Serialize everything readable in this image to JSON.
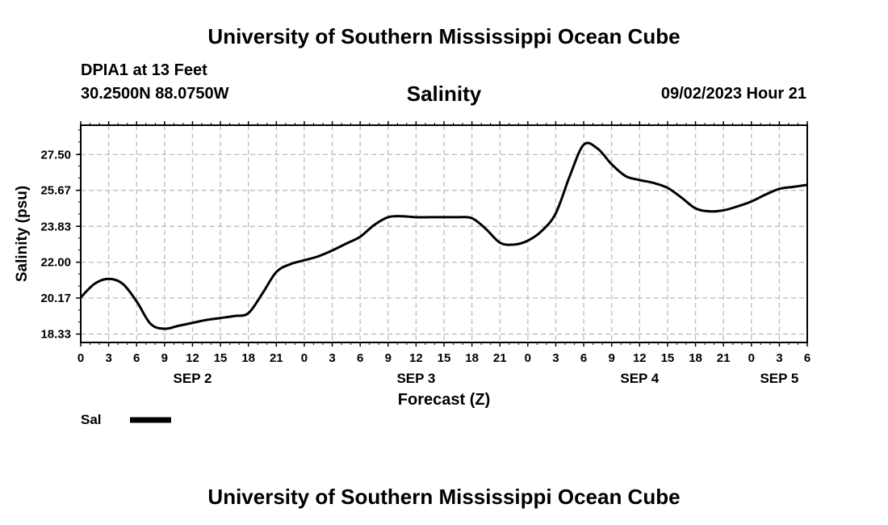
{
  "header": {
    "title": "University of Southern Mississippi Ocean Cube",
    "station": "DPIA1 at 13 Feet",
    "coordinates": "30.2500N  88.0750W",
    "datetime": "09/02/2023 Hour 21"
  },
  "footer": {
    "title": "University of Southern Mississippi Ocean Cube"
  },
  "chart_data": {
    "type": "line",
    "title": "Salinity",
    "xlabel": "Forecast (Z)",
    "ylabel": "Salinity (psu)",
    "xlim": [
      0,
      78
    ],
    "ylim": [
      17.9,
      29.0
    ],
    "grid": true,
    "x_tick_labels": [
      "0",
      "3",
      "6",
      "9",
      "12",
      "15",
      "18",
      "21",
      "0",
      "3",
      "6",
      "9",
      "12",
      "15",
      "18",
      "21",
      "0",
      "3",
      "6",
      "9",
      "12",
      "15",
      "18",
      "21",
      "0",
      "3",
      "6"
    ],
    "y_ticks": [
      18.33,
      20.17,
      22.0,
      23.83,
      25.67,
      27.5
    ],
    "y_tick_labels": [
      "18.33",
      "20.17",
      "22.00",
      "23.83",
      "25.67",
      "27.50"
    ],
    "day_labels": [
      {
        "label": "SEP 2",
        "x": 12
      },
      {
        "label": "SEP 3",
        "x": 36
      },
      {
        "label": "SEP 4",
        "x": 60
      },
      {
        "label": "SEP 5",
        "x": 75
      }
    ],
    "legend": {
      "position": "bottom-left",
      "entries": [
        {
          "name": "Sal",
          "color": "#000000"
        }
      ]
    },
    "series": [
      {
        "name": "Sal",
        "color": "#000000",
        "x": [
          0,
          1.5,
          3,
          4.5,
          6,
          7.5,
          9,
          10.5,
          12,
          13.5,
          15,
          16.5,
          18,
          19.5,
          21,
          22.5,
          24,
          25.5,
          27,
          28.5,
          30,
          31.5,
          33,
          34.5,
          36,
          37.5,
          39,
          40.5,
          42,
          43.5,
          45,
          46.5,
          48,
          49.5,
          51,
          52.5,
          54,
          55.5,
          57,
          58.5,
          60,
          61.5,
          63,
          64.5,
          66,
          67.5,
          69,
          70.5,
          72,
          73.5,
          75,
          76.5,
          78
        ],
        "y": [
          20.2,
          20.9,
          21.15,
          20.9,
          20.0,
          18.85,
          18.6,
          18.75,
          18.9,
          19.05,
          19.15,
          19.25,
          19.4,
          20.4,
          21.5,
          21.9,
          22.1,
          22.3,
          22.6,
          22.95,
          23.3,
          23.9,
          24.3,
          24.35,
          24.3,
          24.3,
          24.3,
          24.3,
          24.25,
          23.7,
          23.0,
          22.9,
          23.1,
          23.6,
          24.5,
          26.4,
          28.0,
          27.8,
          27.0,
          26.4,
          26.2,
          26.05,
          25.8,
          25.3,
          24.75,
          24.6,
          24.65,
          24.85,
          25.1,
          25.45,
          25.75,
          25.85,
          25.95
        ]
      }
    ]
  }
}
